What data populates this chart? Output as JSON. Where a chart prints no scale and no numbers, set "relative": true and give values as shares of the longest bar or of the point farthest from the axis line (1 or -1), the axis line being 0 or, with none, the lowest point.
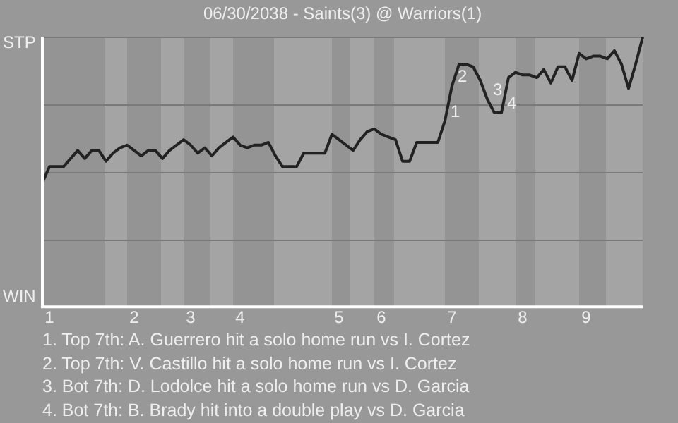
{
  "chart_data": {
    "type": "line",
    "title": "06/30/2038 - Saints(3) @ Warriors(1)",
    "relative": true,
    "categories": [
      null,
      "1",
      null,
      null,
      null,
      null,
      null,
      null,
      null,
      null,
      null,
      null,
      null,
      "2",
      null,
      null,
      null,
      null,
      null,
      null,
      null,
      "3",
      null,
      null,
      null,
      null,
      null,
      null,
      "4",
      null,
      null,
      null,
      null,
      null,
      null,
      null,
      null,
      null,
      null,
      null,
      null,
      null,
      "5",
      null,
      null,
      null,
      null,
      null,
      "6",
      null,
      null,
      null,
      null,
      null,
      null,
      null,
      null,
      null,
      "7",
      null,
      null,
      null,
      null,
      null,
      null,
      null,
      null,
      null,
      "8",
      null,
      null,
      null,
      null,
      null,
      null,
      null,
      null,
      "9",
      null,
      null,
      null,
      null,
      null,
      null,
      null,
      null
    ],
    "series": [
      {
        "color": "#222222",
        "values": [
          0.46,
          0.52,
          0.52,
          0.52,
          0.55,
          0.58,
          0.55,
          0.58,
          0.58,
          0.54,
          0.57,
          0.59,
          0.6,
          0.58,
          0.56,
          0.58,
          0.58,
          0.55,
          0.58,
          0.6,
          0.62,
          0.6,
          0.57,
          0.59,
          0.56,
          0.59,
          0.61,
          0.63,
          0.6,
          0.59,
          0.6,
          0.6,
          0.61,
          0.56,
          0.52,
          0.52,
          0.52,
          0.57,
          0.57,
          0.57,
          0.57,
          0.64,
          0.62,
          0.6,
          0.58,
          0.62,
          0.65,
          0.66,
          0.64,
          0.63,
          0.62,
          0.54,
          0.54,
          0.61,
          0.61,
          0.61,
          0.61,
          0.69,
          0.82,
          0.9,
          0.9,
          0.89,
          0.84,
          0.77,
          0.72,
          0.72,
          0.85,
          0.87,
          0.86,
          0.86,
          0.85,
          0.88,
          0.83,
          0.89,
          0.89,
          0.84,
          0.94,
          0.92,
          0.93,
          0.93,
          0.92,
          0.95,
          0.9,
          0.81,
          0.9,
          1.0
        ]
      }
    ],
    "grid": "y",
    "marker": "none",
    "line_style": "solid",
    "legend": false,
    "annotations": [
      "STP",
      "WIN",
      "1",
      "2",
      "3",
      "4",
      "1. Top 7th: A. Guerrero hit a solo home run vs I. Cortez",
      "2. Top 7th: V. Castillo hit a solo home run vs I. Cortez",
      "3. Bot 7th: D. Lodolce hit a solo home run vs D. Garcia",
      "4. Bot 7th: B. Brady hit into a double play vs D. Garcia"
    ]
  }
}
